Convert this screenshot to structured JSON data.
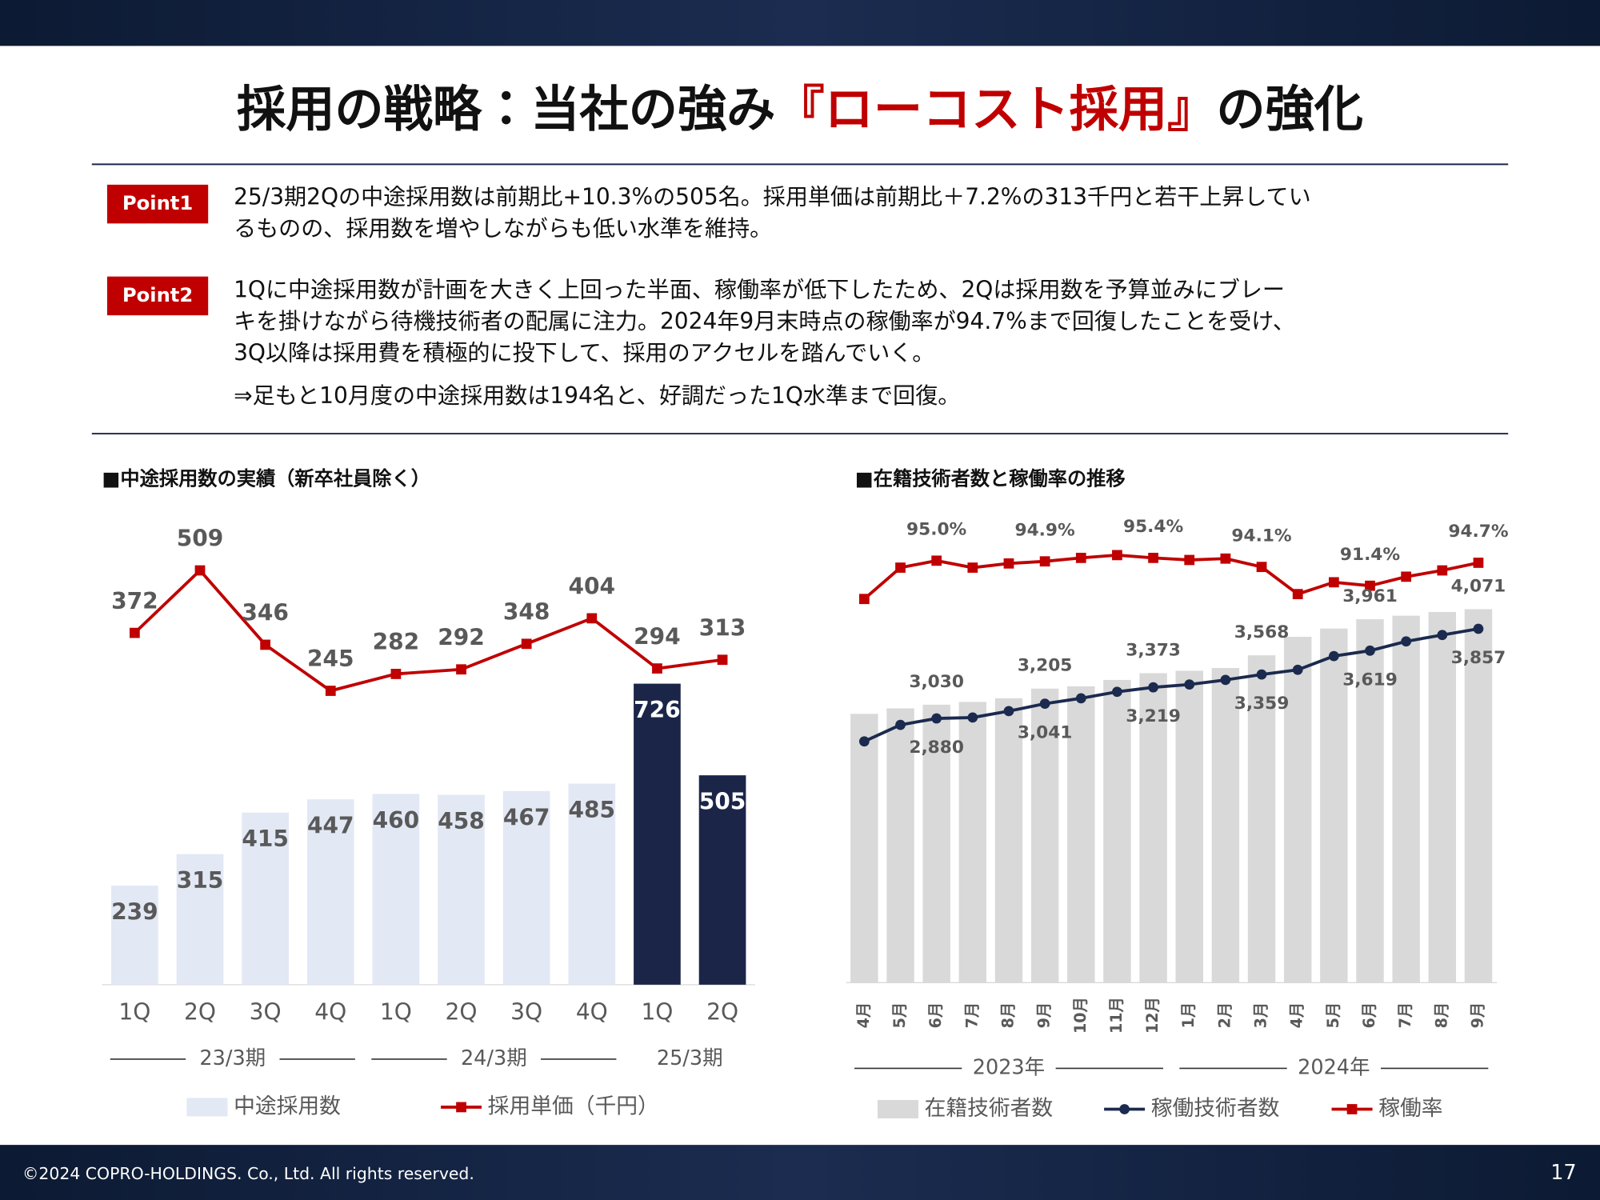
{
  "header": {
    "title": [
      "採用の戦略：当社の強み",
      "『ローコスト採用』",
      "の強化"
    ]
  },
  "points": [
    {
      "label": "Point1",
      "lines": [
        "25/3期2Qの中途採用数は前期比+10.3%の505名。採用単価は前期比＋7.2%の313千円と若干上昇してい",
        "るものの、採用数を増やしながらも低い水準を維持。"
      ]
    },
    {
      "label": "Point2",
      "lines": [
        "1Qに中途採用数が計画を大きく上回った半面、稼働率が低下したため、2Qは採用数を予算並みにブレー",
        "キを掛けながら待機技術者の配属に注力。2024年9月末時点の稼働率が94.7%まで回復したことを受け、",
        "3Q以降は採用費を積極的に投下して、採用のアクセルを踏んでいく。"
      ]
    }
  ],
  "note": "⇒足もと10月度の中途採用数は194名と、好調だった1Q水準まで回復。",
  "chart_data": [
    {
      "type": "combo",
      "title": "■中途採用数の実績（新卒社員除く）",
      "categories": [
        "1Q",
        "2Q",
        "3Q",
        "4Q",
        "1Q",
        "2Q",
        "3Q",
        "4Q",
        "1Q",
        "2Q"
      ],
      "category_groups": [
        "23/3期",
        "23/3期",
        "23/3期",
        "23/3期",
        "24/3期",
        "24/3期",
        "24/3期",
        "24/3期",
        "25/3期",
        "25/3期"
      ],
      "series": [
        {
          "name": "中途採用数",
          "type": "bar",
          "color": "#e3e8f5",
          "colors": [
            "#e3e8f5",
            "#e3e8f5",
            "#e3e8f5",
            "#e3e8f5",
            "#e3e8f5",
            "#e3e8f5",
            "#e3e8f5",
            "#e3e8f5",
            "#1b2548",
            "#1b2548"
          ],
          "values": [
            239,
            315,
            415,
            447,
            460,
            458,
            467,
            485,
            726,
            505
          ]
        },
        {
          "name": "採用単価（千円）",
          "type": "line",
          "axis": "y2",
          "marker": "square",
          "color": "#c00000",
          "values": [
            372,
            509,
            346,
            245,
            282,
            292,
            348,
            404,
            294,
            313
          ]
        }
      ]
    },
    {
      "type": "combo",
      "title": "■在籍技術者数と稼働率の推移",
      "categories": [
        "4月",
        "5月",
        "6月",
        "7月",
        "8月",
        "9月",
        "10月",
        "11月",
        "12月",
        "1月",
        "2月",
        "3月",
        "4月",
        "5月",
        "6月",
        "7月",
        "8月",
        "9月"
      ],
      "category_groups": [
        "2023年",
        "2023年",
        "2023年",
        "2023年",
        "2023年",
        "2023年",
        "2023年",
        "2023年",
        "2023年",
        "2024年",
        "2024年",
        "2024年",
        "2024年",
        "2024年",
        "2024年",
        "2024年",
        "2024年",
        "2024年"
      ],
      "series": [
        {
          "name": "在籍技術者数",
          "type": "bar",
          "color": "#d9d9d9",
          "values": [
            2930,
            2990,
            3030,
            3060,
            3100,
            3205,
            3230,
            3300,
            3373,
            3400,
            3430,
            3568,
            3770,
            3860,
            3961,
            4000,
            4040,
            4071
          ],
          "value_labels": [
            null,
            null,
            "3,030",
            null,
            null,
            "3,205",
            null,
            null,
            "3,373",
            null,
            null,
            "3,568",
            null,
            null,
            "3,961",
            null,
            null,
            "4,071"
          ]
        },
        {
          "name": "稼働技術者数",
          "type": "line",
          "marker": "circle",
          "color": "#1b2a4e",
          "values": [
            2630,
            2810,
            2880,
            2890,
            2960,
            3041,
            3100,
            3170,
            3219,
            3250,
            3300,
            3359,
            3410,
            3560,
            3619,
            3720,
            3790,
            3857
          ],
          "value_labels": [
            null,
            null,
            "2,880",
            null,
            null,
            "3,041",
            null,
            null,
            "3,219",
            null,
            null,
            "3,359",
            null,
            null,
            "3,619",
            null,
            null,
            "3,857"
          ]
        },
        {
          "name": "稼働率",
          "type": "line",
          "axis": "y2",
          "marker": "square",
          "color": "#c00000",
          "values": [
            89.5,
            94.0,
            95.0,
            94.0,
            94.6,
            94.9,
            95.4,
            95.8,
            95.4,
            95.1,
            95.3,
            94.1,
            90.2,
            91.9,
            91.4,
            92.7,
            93.6,
            94.7
          ],
          "value_labels": [
            null,
            null,
            "95.0%",
            null,
            null,
            "94.9%",
            null,
            null,
            "95.4%",
            null,
            null,
            "94.1%",
            null,
            null,
            "91.4%",
            null,
            null,
            "94.7%"
          ]
        }
      ]
    }
  ],
  "footer": {
    "copyright": "©2024 COPRO-HOLDINGS. Co., Ltd. All rights reserved.",
    "page": 17
  }
}
